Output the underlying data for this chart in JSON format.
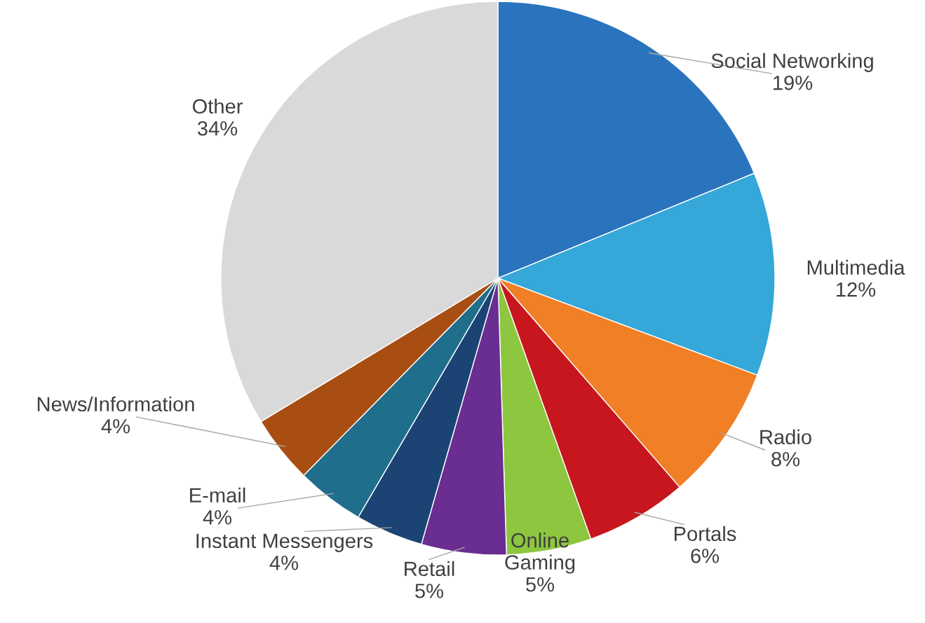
{
  "chart_data": {
    "type": "pie",
    "categories": [
      "Social Networking",
      "Multimedia",
      "Radio",
      "Portals",
      "Online\nGaming",
      "Retail",
      "Instant Messengers",
      "E-mail",
      "News/Information",
      "Other"
    ],
    "values": [
      19,
      12,
      8,
      6,
      5,
      5,
      4,
      4,
      4,
      34
    ],
    "value_labels": [
      "19%",
      "12%",
      "8%",
      "6%",
      "5%",
      "5%",
      "4%",
      "4%",
      "4%",
      "34%"
    ],
    "colors": [
      "#2a74bd",
      "#35a7d8",
      "#f07f25",
      "#c8161e",
      "#8dc63f",
      "#6a2d91",
      "#1b4474",
      "#1f6e8c",
      "#a94e13",
      "#d9d9d9"
    ],
    "legend": false
  }
}
